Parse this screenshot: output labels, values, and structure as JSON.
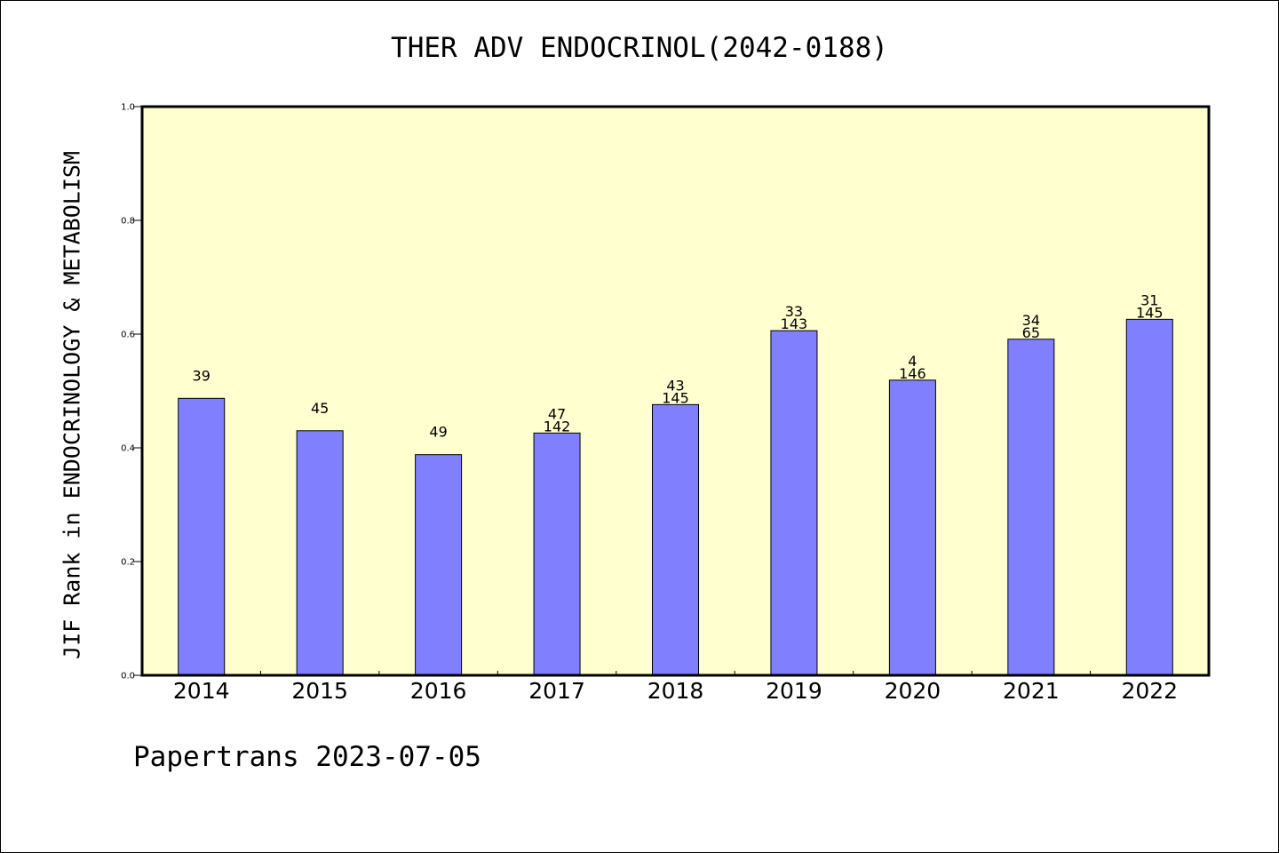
{
  "chart_data": {
    "type": "bar",
    "title": "THER ADV ENDOCRINOL(2042-0188)",
    "xlabel": "",
    "ylabel": "JIF Rank in ENDOCRINOLOGY & METABOLISM",
    "ylim": [
      0,
      1.0
    ],
    "yticks": [
      "0.0",
      "0.2",
      "0.4",
      "0.6",
      "0.8",
      "1.0"
    ],
    "categories": [
      "2014",
      "2015",
      "2016",
      "2017",
      "2018",
      "2019",
      "2020",
      "2021",
      "2022"
    ],
    "values": [
      0.487,
      0.43,
      0.388,
      0.426,
      0.476,
      0.606,
      0.519,
      0.591,
      0.626
    ],
    "labels_top": [
      "",
      "",
      "",
      "47",
      "43",
      "33",
      "4",
      "34",
      "31"
    ],
    "labels_bottom": [
      "39",
      "45",
      "49",
      "142",
      "145",
      "143",
      "146",
      "65",
      "145"
    ],
    "grid": false,
    "plot_background": "#FFFFD0",
    "bar_color": "#8080FF",
    "bar_edge_color": "#000000"
  },
  "footer": {
    "text": "Papertrans 2023-07-05"
  }
}
